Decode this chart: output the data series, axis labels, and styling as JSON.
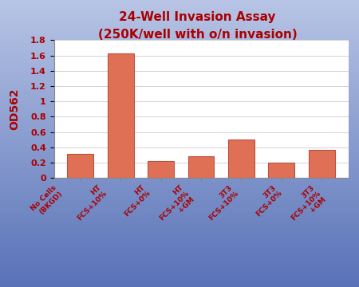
{
  "title_line1": "24-Well Invasion Assay",
  "title_line2": "(250K/well with o/n invasion)",
  "ylabel": "OD562",
  "categories": [
    "No Cells\n(BKGD)",
    "HT\nFCS+10%",
    "HT\nFCS+0%",
    "HT\nFCS+10%\n+GM",
    "3T3\nFCS+10%",
    "3T3\nFCS+0%",
    "3T3\nFCS+10%\n+GM"
  ],
  "values": [
    0.31,
    1.63,
    0.22,
    0.285,
    0.505,
    0.195,
    0.37
  ],
  "bar_color": "#E07055",
  "bar_edge_color": "#B85040",
  "ylim": [
    0,
    1.8
  ],
  "yticks": [
    0,
    0.2,
    0.4,
    0.6,
    0.8,
    1.0,
    1.2,
    1.4,
    1.6,
    1.8
  ],
  "ytick_labels": [
    "0",
    "0.2",
    "0.4",
    "0.6",
    "0.8",
    "1",
    "1.2",
    "1.4",
    "1.6",
    "1.8"
  ],
  "plot_bg": "#FFFFFF",
  "title_color": "#AA0000",
  "tick_label_color": "#AA0000",
  "ylabel_color": "#AA0000",
  "grid_color": "#CCCCCC",
  "fig_bg_color": "#7085B8"
}
